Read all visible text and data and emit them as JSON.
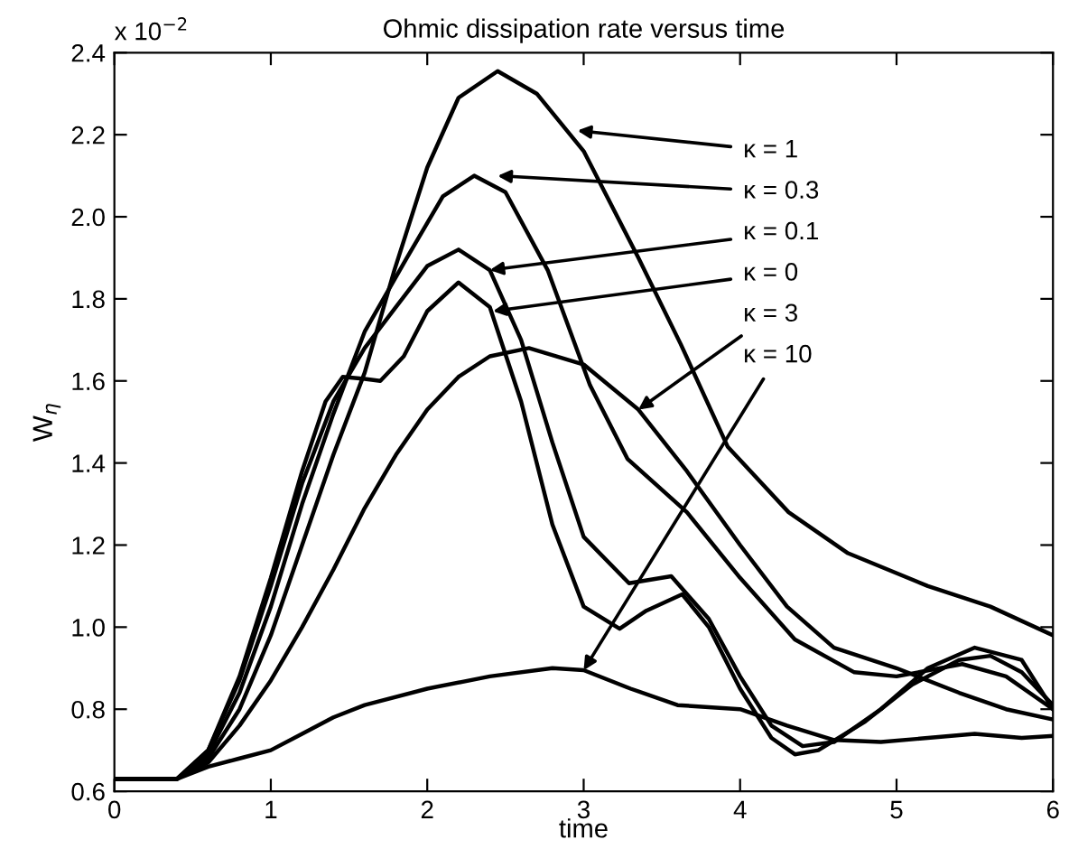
{
  "chart_data": {
    "type": "line",
    "title": "Ohmic dissipation rate versus time",
    "xlabel": "time",
    "ylabel": "W$_{η}$",
    "xlim": [
      0,
      6
    ],
    "xticks": [
      0,
      1,
      2,
      3,
      4,
      5,
      6
    ],
    "ylim": [
      0.6,
      2.4
    ],
    "yticks": [
      0.6,
      0.8,
      {
        "value": 1,
        "label": "1.0"
      },
      1.2,
      1.4,
      1.6,
      1.8,
      {
        "value": 2,
        "label": "2.0"
      },
      2.2,
      2.4
    ],
    "grid": false,
    "legend": false,
    "marker": "none",
    "line_style": "solid",
    "series": [
      {
        "color": "#000000",
        "x": [
          0,
          0.4,
          0.6,
          0.8,
          1.0,
          1.2,
          1.4,
          1.6,
          1.79,
          2.0,
          2.2,
          2.45,
          2.7,
          3.0,
          3.35,
          3.62,
          3.92,
          4.31,
          4.69,
          5.2,
          5.6,
          6.0
        ],
        "values": [
          0.63,
          0.63,
          0.68,
          0.8,
          0.98,
          1.2,
          1.42,
          1.62,
          1.87,
          2.12,
          2.29,
          2.355,
          2.3,
          2.16,
          1.9,
          1.69,
          1.44,
          1.28,
          1.18,
          1.1,
          1.05,
          0.98
        ]
      },
      {
        "color": "#000000",
        "x": [
          0,
          0.4,
          0.6,
          0.8,
          1.0,
          1.2,
          1.4,
          1.6,
          1.87,
          2.1,
          2.3,
          2.5,
          2.77,
          3.04,
          3.28,
          3.66,
          4.0,
          4.35,
          4.73,
          5.0,
          5.42,
          5.7,
          6.0
        ],
        "values": [
          0.63,
          0.63,
          0.69,
          0.84,
          1.05,
          1.3,
          1.52,
          1.72,
          1.9,
          2.05,
          2.1,
          2.06,
          1.87,
          1.59,
          1.41,
          1.28,
          1.12,
          0.97,
          0.89,
          0.88,
          0.91,
          0.88,
          0.8
        ]
      },
      {
        "color": "#000000",
        "x": [
          0,
          0.4,
          0.6,
          0.8,
          1.0,
          1.2,
          1.4,
          1.6,
          1.8,
          2.0,
          2.2,
          2.4,
          2.6,
          2.8,
          3.0,
          3.29,
          3.56,
          3.8,
          4.0,
          4.2,
          4.4,
          4.6,
          4.9,
          5.2,
          5.5,
          5.8,
          6.0
        ],
        "values": [
          0.63,
          0.63,
          0.7,
          0.87,
          1.1,
          1.35,
          1.55,
          1.68,
          1.78,
          1.88,
          1.92,
          1.87,
          1.7,
          1.45,
          1.22,
          1.107,
          1.124,
          1.02,
          0.88,
          0.76,
          0.71,
          0.72,
          0.8,
          0.9,
          0.95,
          0.92,
          0.8
        ]
      },
      {
        "color": "#000000",
        "x": [
          0,
          0.4,
          0.6,
          0.8,
          1.0,
          1.2,
          1.35,
          1.46,
          1.6,
          1.7,
          1.85,
          2.0,
          2.2,
          2.4,
          2.6,
          2.8,
          3.0,
          3.23,
          3.4,
          3.63,
          3.8,
          4.0,
          4.2,
          4.35,
          4.5,
          4.8,
          5.1,
          5.4,
          5.6,
          5.8,
          6.0
        ],
        "values": [
          0.63,
          0.63,
          0.7,
          0.88,
          1.12,
          1.38,
          1.55,
          1.61,
          1.605,
          1.6,
          1.66,
          1.77,
          1.84,
          1.78,
          1.55,
          1.25,
          1.05,
          0.996,
          1.04,
          1.08,
          1.0,
          0.85,
          0.73,
          0.69,
          0.7,
          0.77,
          0.86,
          0.92,
          0.93,
          0.89,
          0.81
        ]
      },
      {
        "color": "#000000",
        "x": [
          0,
          0.4,
          0.6,
          0.8,
          1.0,
          1.2,
          1.4,
          1.6,
          1.8,
          2.0,
          2.2,
          2.4,
          2.65,
          3.0,
          3.35,
          3.66,
          4.0,
          4.3,
          4.6,
          5.0,
          5.4,
          5.7,
          6.0
        ],
        "values": [
          0.63,
          0.63,
          0.67,
          0.76,
          0.87,
          1.0,
          1.14,
          1.29,
          1.42,
          1.53,
          1.61,
          1.66,
          1.68,
          1.64,
          1.53,
          1.38,
          1.2,
          1.05,
          0.95,
          0.9,
          0.84,
          0.8,
          0.775
        ]
      },
      {
        "color": "#000000",
        "x": [
          0,
          0.4,
          0.6,
          0.8,
          1.0,
          1.2,
          1.4,
          1.6,
          2.0,
          2.4,
          2.8,
          3.0,
          3.3,
          3.6,
          4.0,
          4.3,
          4.6,
          4.9,
          5.2,
          5.5,
          5.8,
          6.0
        ],
        "values": [
          0.63,
          0.63,
          0.66,
          0.68,
          0.7,
          0.74,
          0.78,
          0.81,
          0.85,
          0.88,
          0.9,
          0.895,
          0.85,
          0.81,
          0.8,
          0.76,
          0.725,
          0.72,
          0.73,
          0.74,
          0.73,
          0.735
        ]
      }
    ],
    "annotations": [
      "x 10$^{−2}$",
      {
        "text": "κ = 1",
        "x": 2.96,
        "y": 2.21
      },
      {
        "text": "κ = 0.3",
        "x": 2.45,
        "y": 2.1
      },
      {
        "text": "κ = 0.1",
        "x": 2.4,
        "y": 1.87
      },
      {
        "text": "κ = 0",
        "x": 2.42,
        "y": 1.77
      },
      {
        "text": "κ = 3",
        "x": 3.35,
        "y": 1.53
      },
      {
        "text": "κ = 10",
        "x": 3.0,
        "y": 0.895
      }
    ]
  }
}
